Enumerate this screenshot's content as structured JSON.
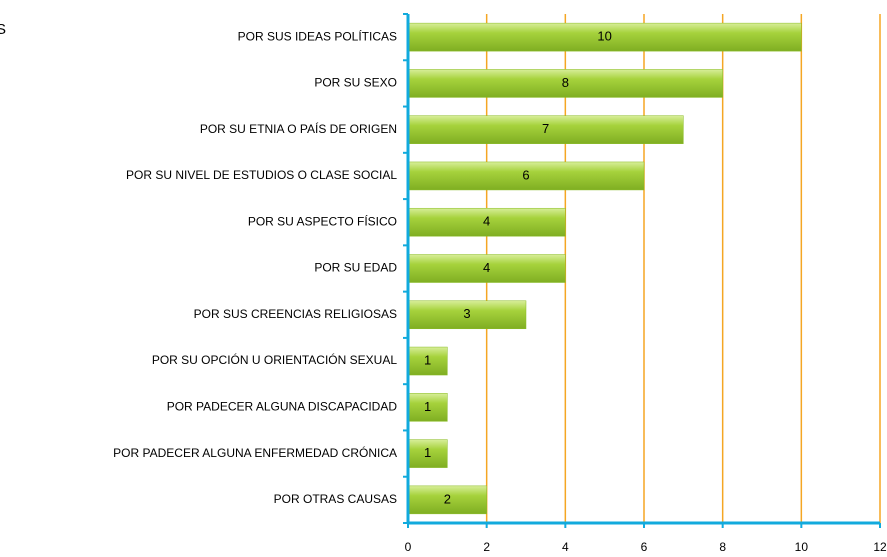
{
  "chart_data": {
    "type": "barh",
    "title": "S",
    "categories": [
      "POR SUS IDEAS POLÍTICAS",
      "POR SU SEXO",
      "POR SU ETNIA O PAÍS DE ORIGEN",
      "POR SU NIVEL DE ESTUDIOS O CLASE SOCIAL",
      "POR SU ASPECTO FÍSICO",
      "POR SU EDAD",
      "POR SUS CREENCIAS RELIGIOSAS",
      "POR SU OPCIÓN U ORIENTACIÓN SEXUAL",
      "POR PADECER ALGUNA DISCAPACIDAD",
      "POR PADECER ALGUNA ENFERMEDAD CRÓNICA",
      "POR OTRAS CAUSAS"
    ],
    "values": [
      10,
      8,
      7,
      6,
      4,
      4,
      3,
      1,
      1,
      1,
      2
    ],
    "color": "#99cc33",
    "xlim": [
      0,
      12
    ],
    "xticks": [
      0,
      2,
      4,
      6,
      8,
      10,
      12
    ],
    "grid": true
  }
}
